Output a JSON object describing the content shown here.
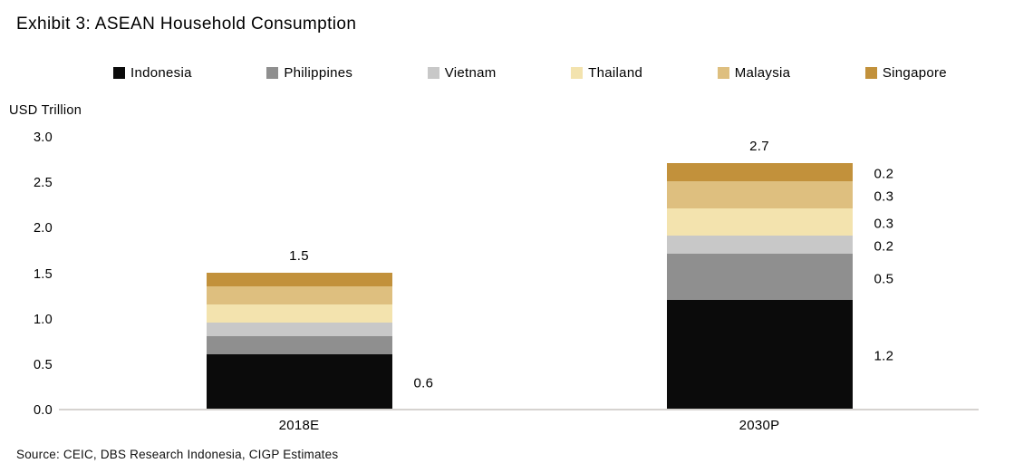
{
  "title": "Exhibit 3: ASEAN Household Consumption",
  "source": "Source: CEIC, DBS Research Indonesia, CIGP Estimates",
  "chart_data": {
    "type": "bar",
    "stacked": true,
    "title": "Exhibit 3: ASEAN Household Consumption",
    "ylabel": "USD Trillion",
    "ylim": [
      0,
      3.0
    ],
    "y_ticks": [
      "0.0",
      "0.5",
      "1.0",
      "1.5",
      "2.0",
      "2.5",
      "3.0"
    ],
    "grid": false,
    "legend_position": "top",
    "categories": [
      "2018E",
      "2030P"
    ],
    "series": [
      {
        "name": "Indonesia",
        "color": "#0b0b0b",
        "values": [
          0.6,
          1.2
        ]
      },
      {
        "name": "Philippines",
        "color": "#8f8f8f",
        "values": [
          0.2,
          0.5
        ]
      },
      {
        "name": "Vietnam",
        "color": "#c8c8c8",
        "values": [
          0.15,
          0.2
        ]
      },
      {
        "name": "Thailand",
        "color": "#f3e3ae",
        "values": [
          0.2,
          0.3
        ]
      },
      {
        "name": "Malaysia",
        "color": "#debf7f",
        "values": [
          0.2,
          0.3
        ]
      },
      {
        "name": "Singapore",
        "color": "#c2913b",
        "values": [
          0.15,
          0.2
        ]
      }
    ],
    "bars": [
      {
        "category": "2018E",
        "total_label": "1.5",
        "segment_labels": [
          "0.6",
          "",
          "",
          "",
          "",
          ""
        ]
      },
      {
        "category": "2030P",
        "total_label": "2.7",
        "segment_labels": [
          "1.2",
          "0.5",
          "0.2",
          "0.3",
          "0.3",
          "0.2"
        ]
      }
    ]
  }
}
